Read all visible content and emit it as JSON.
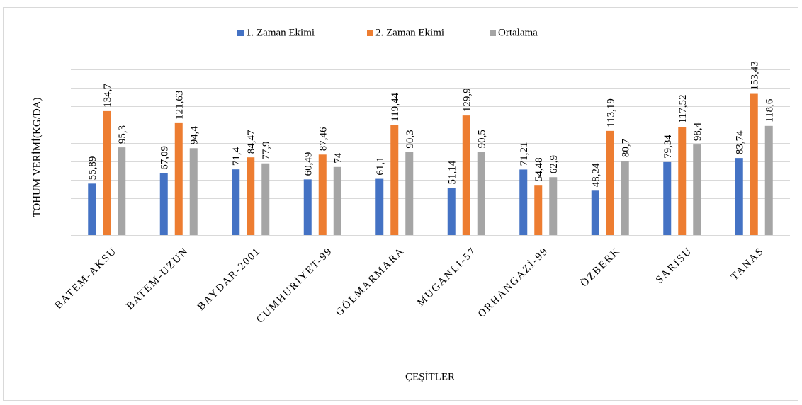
{
  "chart_data": {
    "type": "bar",
    "y_label": "TOHUM VERİMİ(KG/DA)",
    "x_label": "ÇEŞİTLER",
    "categories": [
      "BATEM-AKSU",
      "BATEM-UZUN",
      "BAYDAR-2001",
      "CUMHURİYET-99",
      "GÖLMARMARA",
      "MUGANLI-57",
      "ORHANGAZİ-99",
      "ÖZBERK",
      "SARISU",
      "TANAS"
    ],
    "series": [
      {
        "name": "1. Zaman Ekimi",
        "color": "#4472c4",
        "values": [
          55.89,
          67.09,
          71.4,
          60.49,
          61.1,
          51.14,
          71.21,
          48.24,
          79.34,
          83.74
        ],
        "value_labels": [
          "55,89",
          "67,09",
          "71,4",
          "60,49",
          "61,1",
          "51,14",
          "71,21",
          "48,24",
          "79,34",
          "83,74"
        ]
      },
      {
        "name": "2. Zaman Ekimi",
        "color": "#ed7d31",
        "values": [
          134.7,
          121.63,
          84.47,
          87.46,
          119.44,
          129.9,
          54.48,
          113.19,
          117.52,
          153.43
        ],
        "value_labels": [
          "134,7",
          "121,63",
          "84,47",
          "87,46",
          "119,44",
          "129,9",
          "54,48",
          "113,19",
          "117,52",
          "153,43"
        ]
      },
      {
        "name": "Ortalama",
        "color": "#a5a5a5",
        "values": [
          95.3,
          94.4,
          77.9,
          74,
          90.3,
          90.5,
          62.9,
          80.7,
          98.4,
          118.6
        ],
        "value_labels": [
          "95,3",
          "94,4",
          "77,9",
          "74",
          "90,3",
          "90,5",
          "62,9",
          "80,7",
          "98,4",
          "118,6"
        ]
      }
    ],
    "ylim": [
      0,
      180
    ],
    "yticks": [
      0,
      20,
      40,
      60,
      80,
      100,
      120,
      140,
      160,
      180
    ],
    "grid": true,
    "legend": "top"
  }
}
